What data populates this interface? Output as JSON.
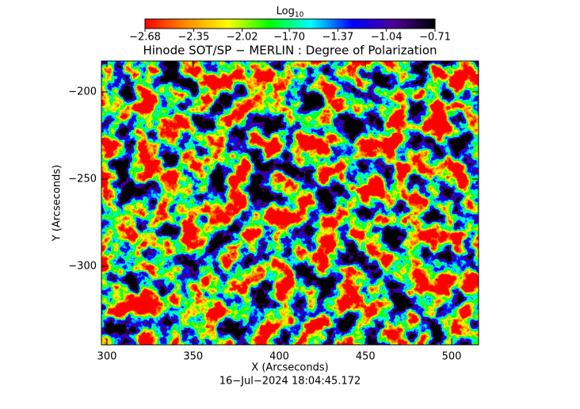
{
  "chart_data": {
    "type": "image",
    "title": "Hinode SOT/SP − MERLIN : Degree of Polarization",
    "x_label": "X (Arcseconds)",
    "y_label": "Y (Arcseconds)",
    "footer": "16−Jul−2024 18:04:45.172",
    "xlim": [
      296.8,
      515.6
    ],
    "xticks": [
      300,
      350,
      400,
      450,
      500
    ],
    "ylim": [
      -345,
      -182.3
    ],
    "yticks": [
      {
        "value": -200,
        "label": "−200"
      },
      {
        "value": -250,
        "label": "−250"
      },
      {
        "value": -300,
        "label": "−300"
      }
    ],
    "colorbar_label": "Log",
    "colorbar_label_sub": "10",
    "clim": [
      -2.68,
      -0.71
    ],
    "colorbar_ticks": [
      {
        "value": -2.68,
        "label": "−2.68"
      },
      {
        "value": -2.35,
        "label": "−2.35"
      },
      {
        "value": -2.02,
        "label": "−2.02"
      },
      {
        "value": -1.7,
        "label": "−1.70"
      },
      {
        "value": -1.37,
        "label": "−1.37"
      },
      {
        "value": -1.04,
        "label": "−1.04"
      },
      {
        "value": -0.71,
        "label": "−0.71"
      }
    ],
    "colormap": [
      "#ff0000",
      "#ff8c00",
      "#ffff00",
      "#00ff00",
      "#00ffff",
      "#0000ff",
      "#4b0096",
      "#000000"
    ]
  }
}
